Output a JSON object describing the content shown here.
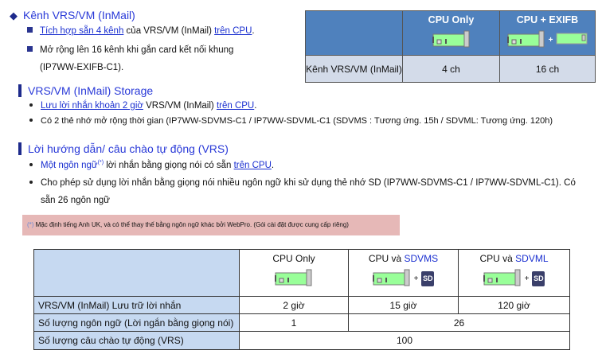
{
  "section1": {
    "title": "Kênh VRS/VM (InMail)",
    "item1_link1": "Tích hợp sẵn 4 kênh",
    "item1_text": " của VRS/VM (InMail) ",
    "item1_link2": "trên CPU",
    "item1_end": ".",
    "item2_line1": "Mở rộng lên 16 kênh khi gắn card kết nối khung",
    "item2_line2": "(IP7WW-EXIFB-C1)."
  },
  "table1": {
    "col1": "CPU Only",
    "col2": "CPU + EXIFB",
    "plus": "+",
    "row_label": "Kênh VRS/VM (InMail)",
    "val1": "4 ch",
    "val2": "16 ch"
  },
  "section2": {
    "title": "VRS/VM (InMail) Storage",
    "item1_link1": "Lưu lời nhắn khoản 2 giờ",
    "item1_text": "  VRS/VM (InMail) ",
    "item1_link2": "trên CPU",
    "item1_end": ".",
    "item2": "Có 2 thẻ nhớ mở rộng thời gian (IP7WW-SDVMS-C1 / IP7WW-SDVML-C1 (SDVMS : Tương ứng. 15h / SDVML: Tương ứng. 120h)"
  },
  "section3": {
    "title": "Lời hướng dẫn/ câu chào tự động (VRS)",
    "item1_link1": "Một ngôn ngữ",
    "item1_sup": "(*)",
    "item1_text": " lời nhắn bằng giọng nói có sẵn ",
    "item1_link2": "trên CPU",
    "item1_end": ".",
    "item2_line1": "Cho phép sử dụng lời nhắn bằng giọng nói nhiều ngôn ngữ khi sử dụng thẻ nhớ SD (IP7WW-SDVMS-C1 / IP7WW-SDVML-C1). Có",
    "item2_line2": "sẵn 26 ngôn ngữ"
  },
  "note": {
    "mark": "(*)",
    "text": " Mặc định tiếng Anh UK, và có thể thay thế bằng ngôn ngữ khác bởi WebPro. (Gói cài đặt được cung cấp riêng)"
  },
  "table2": {
    "col1": "CPU Only",
    "col2_prefix": "CPU và ",
    "col2_highlight": "SDVMS",
    "col3_prefix": "CPU và ",
    "col3_highlight": "SDVML",
    "plus": "+",
    "sd_label": "SD",
    "rows": [
      {
        "label": "VRS/VM (InMail) Lưu trữ lời nhắn",
        "values": [
          "2 giờ",
          "15 giờ",
          "120 giờ"
        ]
      },
      {
        "label": "Số lượng ngôn ngữ (Lời ngắn bằng giọng nói)",
        "values": [
          "1",
          "26"
        ]
      },
      {
        "label": "Số lượng câu chào tự động (VRS)",
        "values": [
          "100"
        ]
      }
    ]
  },
  "colors": {
    "header_blue": "#4f81bd",
    "link_blue": "#1a2fd0",
    "note_pink": "#e6b8b7",
    "card_green": "#99ff99"
  }
}
